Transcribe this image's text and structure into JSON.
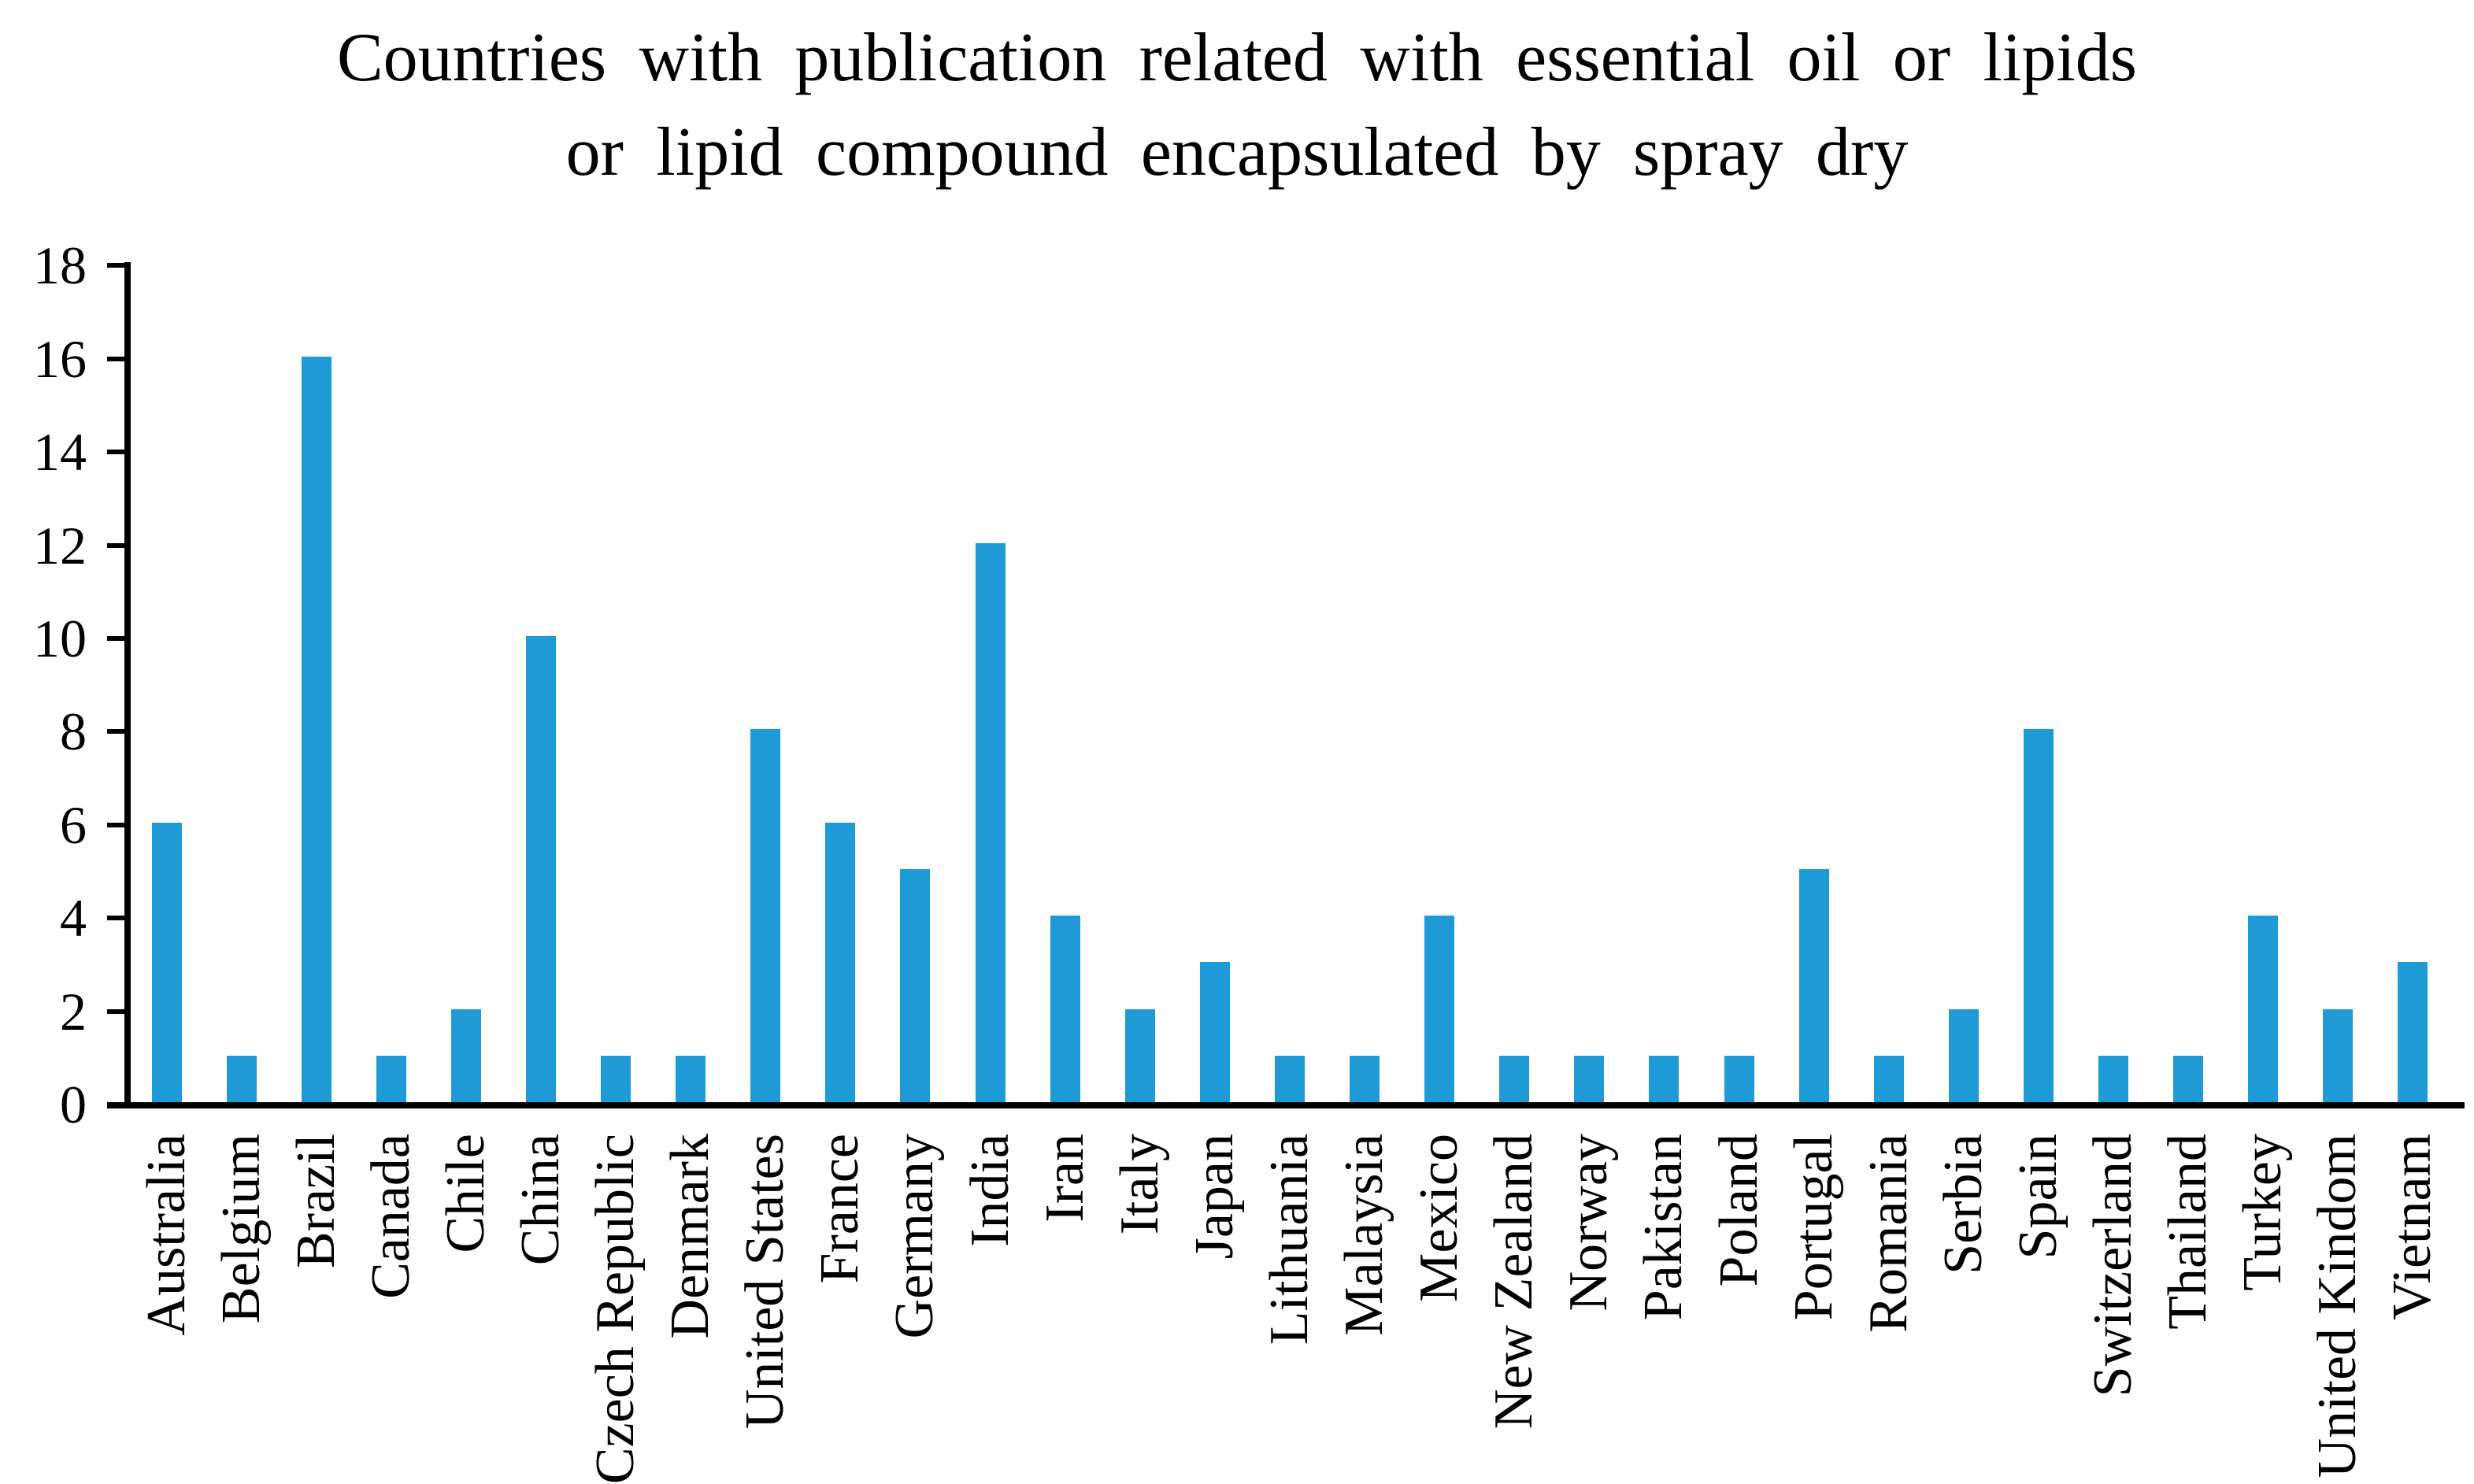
{
  "title": {
    "line1": "Countries with publication related with essential oil or lipids",
    "line2": "or lipid compound encapsulated by spray dry"
  },
  "chart_data": {
    "type": "bar",
    "title": "Countries with publication related with essential oil or lipids or lipid compound encapsulated by spray dry",
    "categories": [
      "Australia",
      "Belgium",
      "Brazil",
      "Canada",
      "Chile",
      "China",
      "Czech Republic",
      "Denmark",
      "United States",
      "France",
      "Germany",
      "India",
      "Iran",
      "Italy",
      "Japan",
      "Lithuania",
      "Malaysia",
      "Mexico",
      "New Zealand",
      "Norway",
      "Pakistan",
      "Poland",
      "Portugal",
      "Romania",
      "Serbia",
      "Spain",
      "Switzerland",
      "Thailand",
      "Turkey",
      "United Kindom",
      "Vietnam"
    ],
    "values": [
      6,
      1,
      16,
      1,
      2,
      10,
      1,
      1,
      8,
      6,
      5,
      12,
      4,
      2,
      3,
      1,
      1,
      4,
      1,
      1,
      1,
      1,
      5,
      1,
      2,
      8,
      1,
      1,
      4,
      2,
      3
    ],
    "xlabel": "",
    "ylabel": "",
    "ylim": [
      0,
      18
    ],
    "yticks": [
      0,
      2,
      4,
      6,
      8,
      10,
      12,
      14,
      16,
      18
    ],
    "grid": false,
    "legend_position": "none",
    "bar_color": "#1E9AD6",
    "axis_color": "#000000",
    "text_color": "#000000"
  }
}
